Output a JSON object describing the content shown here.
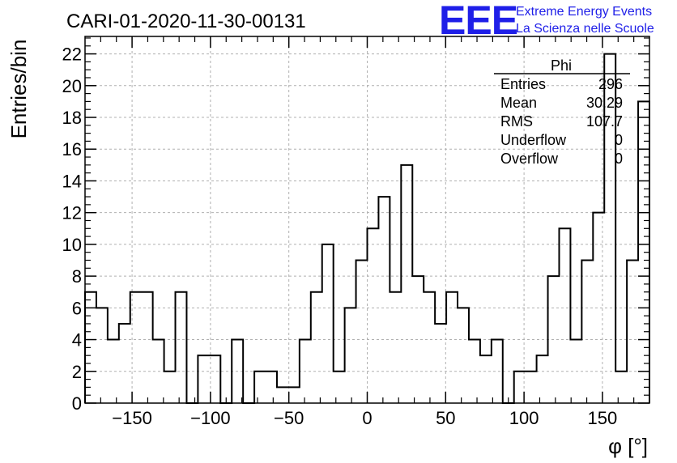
{
  "chart_data": {
    "type": "histogram",
    "title": "CARI-01-2020-11-30-00131",
    "xlabel": "φ [°]",
    "ylabel": "Entries/bin",
    "xlim": [
      -180,
      180
    ],
    "ylim": [
      0,
      23.1
    ],
    "bin_width": 7.2,
    "bin_start": -180,
    "values": [
      7,
      6,
      4,
      5,
      7,
      7,
      4,
      2,
      7,
      0,
      3,
      3,
      0,
      4,
      0,
      2,
      2,
      1,
      1,
      4,
      7,
      10,
      2,
      6,
      9,
      11,
      13,
      7,
      15,
      8,
      7,
      5,
      7,
      6,
      4,
      3,
      4,
      0,
      2,
      2,
      3,
      8,
      11,
      4,
      9,
      12,
      22,
      2,
      9,
      19
    ],
    "x_ticks": [
      -150,
      -100,
      -50,
      0,
      50,
      100,
      150
    ],
    "x_tick_labels": [
      "−150",
      "−100",
      "−50",
      "0",
      "50",
      "100",
      "150"
    ],
    "y_ticks": [
      0,
      2,
      4,
      6,
      8,
      10,
      12,
      14,
      16,
      18,
      20,
      22
    ],
    "y_tick_labels": [
      "0",
      "2",
      "4",
      "6",
      "8",
      "10",
      "12",
      "14",
      "16",
      "18",
      "20",
      "22"
    ],
    "grid": true,
    "legend": "none",
    "stats_box": {
      "name": "Phi",
      "placement": "top-right",
      "rows": [
        {
          "label": "Entries",
          "value": "296"
        },
        {
          "label": "Mean",
          "value": "30.29"
        },
        {
          "label": "RMS",
          "value": "107.7"
        },
        {
          "label": "Underflow",
          "value": "0"
        },
        {
          "label": "Overflow",
          "value": "0"
        }
      ]
    }
  },
  "logo": {
    "text": "EEE",
    "line1": "Extreme Energy Events",
    "line2": "La Scienza nelle Scuole",
    "color": "#1f1fe8"
  }
}
